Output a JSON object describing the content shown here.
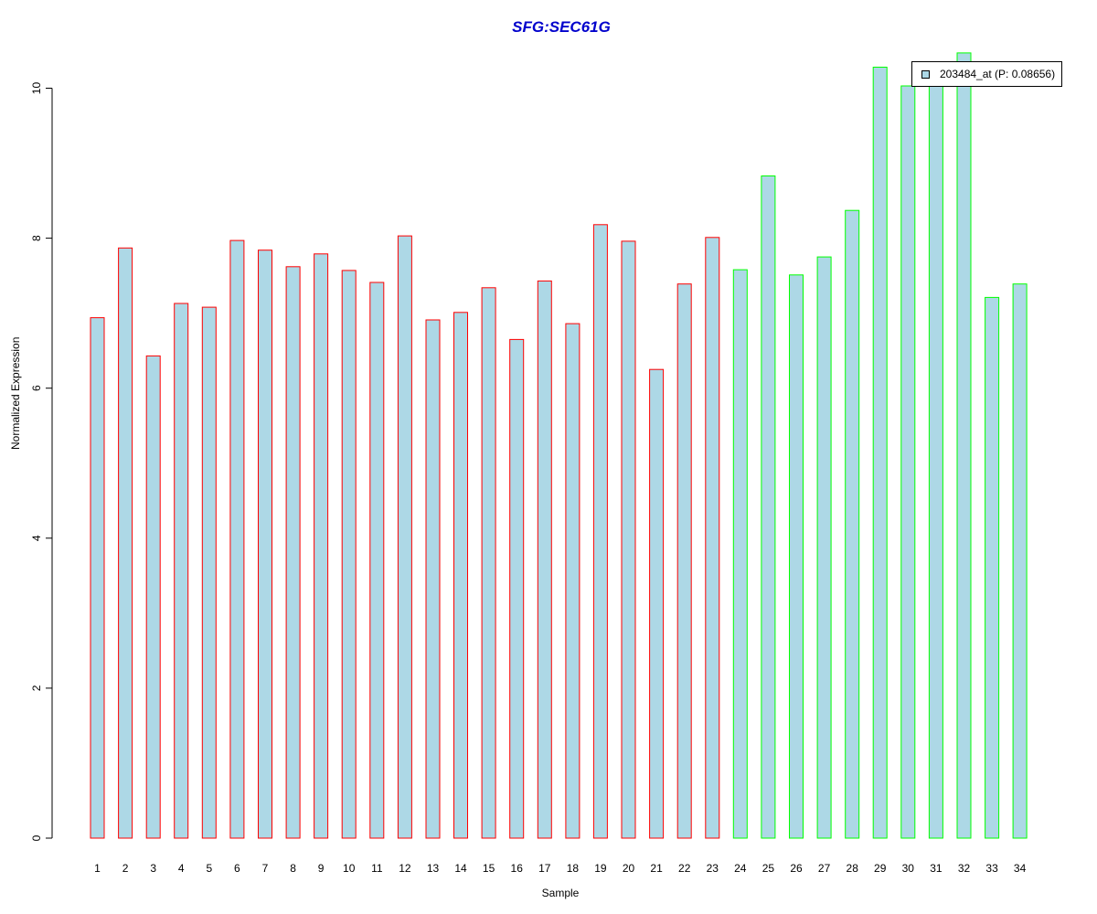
{
  "chart_data": {
    "type": "bar",
    "title": "SFG:SEC61G",
    "xlabel": "Sample",
    "ylabel": "Normalized Expression",
    "ylim": [
      0,
      10.5
    ],
    "y_ticks": [
      0,
      2,
      4,
      6,
      8,
      10
    ],
    "categories": [
      "1",
      "2",
      "3",
      "4",
      "5",
      "6",
      "7",
      "8",
      "9",
      "10",
      "11",
      "12",
      "13",
      "14",
      "15",
      "16",
      "17",
      "18",
      "19",
      "20",
      "21",
      "22",
      "23",
      "24",
      "25",
      "26",
      "27",
      "28",
      "29",
      "30",
      "31",
      "32",
      "33",
      "34"
    ],
    "values": [
      6.94,
      7.87,
      6.43,
      7.13,
      7.08,
      7.97,
      7.84,
      7.62,
      7.79,
      7.57,
      7.41,
      8.03,
      6.91,
      7.01,
      7.34,
      6.65,
      7.43,
      6.86,
      8.18,
      7.96,
      6.25,
      7.39,
      8.01,
      7.58,
      8.83,
      7.51,
      7.75,
      8.37,
      10.28,
      10.03,
      10.1,
      10.47,
      7.21,
      7.39
    ],
    "groups": [
      "red",
      "red",
      "red",
      "red",
      "red",
      "red",
      "red",
      "red",
      "red",
      "red",
      "red",
      "red",
      "red",
      "red",
      "red",
      "red",
      "red",
      "red",
      "red",
      "red",
      "red",
      "red",
      "red",
      "green",
      "green",
      "green",
      "green",
      "green",
      "green",
      "green",
      "green",
      "green",
      "green",
      "green"
    ],
    "bar_fill": "#add8e6",
    "group_colors": {
      "red": "#ff0000",
      "green": "#00ff00"
    },
    "title_color": "#0000cc",
    "legend": {
      "position": "top-right",
      "entries": [
        {
          "label": "203484_at (P: 0.08656)",
          "color": "#add8e6"
        }
      ]
    },
    "grid": false
  }
}
